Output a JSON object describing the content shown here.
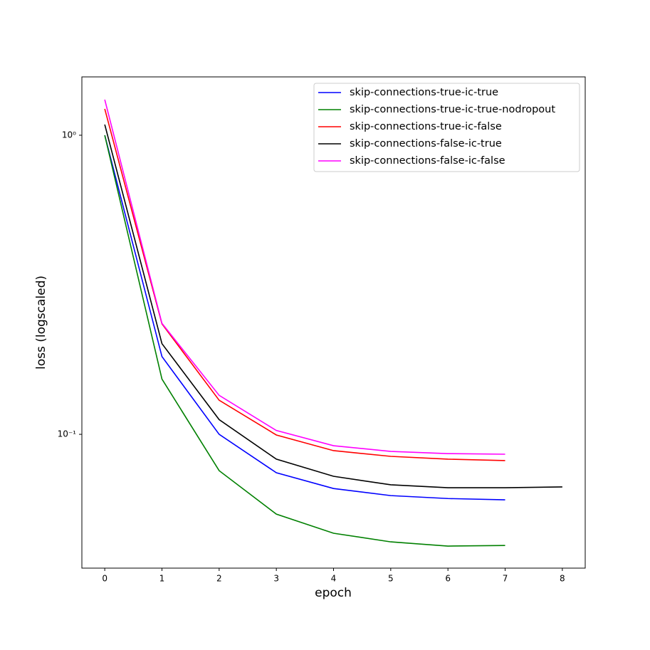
{
  "chart_data": {
    "type": "line",
    "xlabel": "epoch",
    "ylabel": "loss (logscaled)",
    "yscale": "log",
    "x": [
      0,
      1,
      2,
      3,
      4,
      5,
      6,
      7,
      8
    ],
    "series": [
      {
        "name": "skip-connections-true-ic-true",
        "color": "#0000ff",
        "values": [
          1.0,
          0.182,
          0.1,
          0.0744,
          0.0659,
          0.0624,
          0.061,
          0.0604,
          null
        ]
      },
      {
        "name": "skip-connections-true-ic-true-nodropout",
        "color": "#008000",
        "values": [
          1.0,
          0.153,
          0.0756,
          0.0541,
          0.0467,
          0.0437,
          0.0423,
          0.0425,
          null
        ]
      },
      {
        "name": "skip-connections-true-ic-false",
        "color": "#ff0000",
        "values": [
          1.225,
          0.234,
          0.13,
          0.0995,
          0.0882,
          0.0844,
          0.0826,
          0.0817,
          null
        ]
      },
      {
        "name": "skip-connections-false-ic-true",
        "color": "#000000",
        "values": [
          1.086,
          0.201,
          0.112,
          0.0826,
          0.0724,
          0.0678,
          0.0663,
          0.0663,
          0.0667
        ]
      },
      {
        "name": "skip-connections-false-ic-false",
        "color": "#ff00ff",
        "values": [
          1.315,
          0.235,
          0.135,
          0.103,
          0.0916,
          0.0877,
          0.0862,
          0.0858,
          null
        ]
      }
    ],
    "xlim": [
      -0.4,
      8.4
    ],
    "xticks": [
      0,
      1,
      2,
      3,
      4,
      5,
      6,
      7,
      8
    ],
    "ylim": [
      0.0357,
      1.567
    ],
    "yticks": [
      {
        "value": 1,
        "label": "10⁰"
      },
      {
        "value": 0.1,
        "label": "10⁻¹"
      }
    ],
    "legend": "upper right"
  }
}
